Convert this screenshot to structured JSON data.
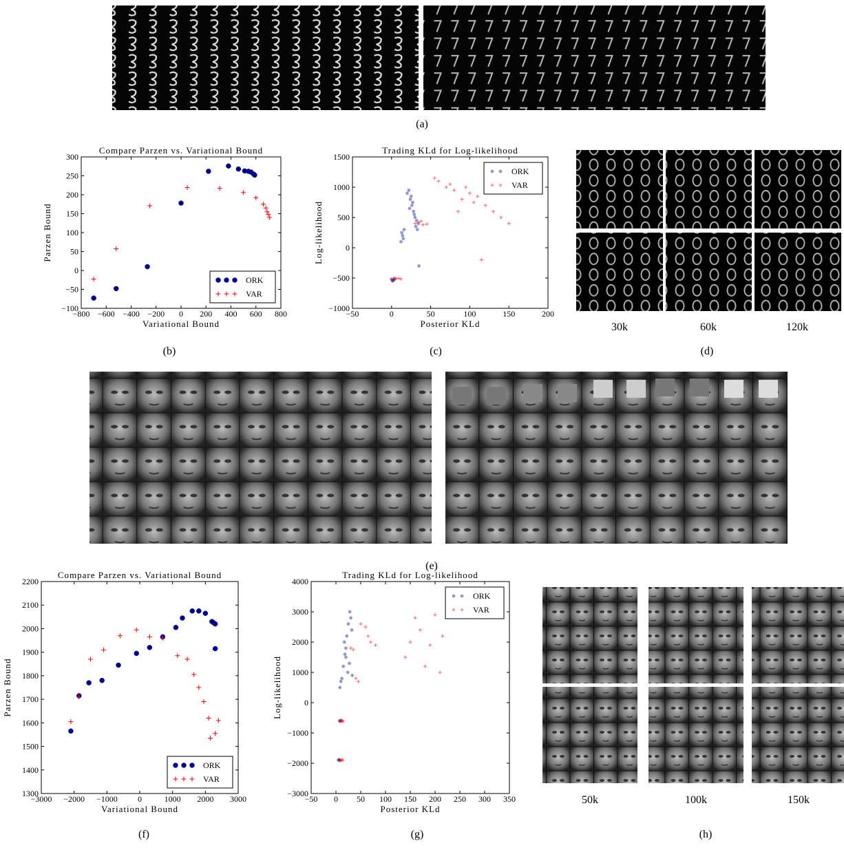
{
  "figure": {
    "panel_labels": [
      "(a)",
      "(b)",
      "(c)",
      "(d)",
      "(e)",
      "(f)",
      "(g)",
      "(h)"
    ],
    "captions_d": [
      "30k",
      "60k",
      "120k"
    ],
    "captions_h": [
      "50k",
      "100k",
      "150k"
    ]
  },
  "chart_data": [
    {
      "type": "scatter",
      "title": "Compare Parzen vs. Variational Bound",
      "xlabel": "Variational Bound",
      "ylabel": "Parzen Bound",
      "xlim": [
        -800,
        800
      ],
      "xticks": [
        {
          "value": -800,
          "label": "−800"
        },
        {
          "value": -600,
          "label": "−600"
        },
        {
          "value": -400,
          "label": "−400"
        },
        {
          "value": -200,
          "label": "−200"
        },
        0,
        200,
        400,
        600,
        800
      ],
      "ylim": [
        -100,
        300
      ],
      "yticks": [
        {
          "value": -100,
          "label": "−100"
        },
        {
          "value": -50,
          "label": "−50"
        },
        0,
        50,
        100,
        150,
        200,
        250,
        300
      ],
      "legend": "lower right",
      "series": [
        {
          "name": "ORK",
          "color": "#00008b",
          "marker": "o",
          "x": [
            -700,
            -520,
            -270,
            0,
            220,
            380,
            460,
            510,
            540,
            560,
            580,
            590
          ],
          "values": [
            -73,
            -48,
            10,
            178,
            262,
            276,
            268,
            263,
            262,
            260,
            255,
            252
          ]
        },
        {
          "name": "VAR",
          "color": "#ff0000",
          "marker": "+",
          "x": [
            -700,
            -520,
            -250,
            50,
            310,
            500,
            600,
            660,
            680,
            690,
            700,
            710
          ],
          "values": [
            -23,
            57,
            171,
            219,
            217,
            206,
            192,
            175,
            165,
            155,
            148,
            140
          ]
        }
      ]
    },
    {
      "type": "scatter",
      "title": "Trading KLd for Log-likelihood",
      "xlabel": "Posterior KLd",
      "ylabel": "Log-likelihood",
      "xlim": [
        -50,
        200
      ],
      "xticks": [
        {
          "value": -50,
          "label": "−50"
        },
        0,
        50,
        100,
        150,
        200
      ],
      "ylim": [
        -1000,
        1500
      ],
      "yticks": [
        {
          "value": -1000,
          "label": "−1000"
        },
        {
          "value": -500,
          "label": "−500"
        },
        0,
        500,
        1000,
        1500
      ],
      "legend": "upper right",
      "series": [
        {
          "name": "ORK",
          "color": "#00008b",
          "marker": "o",
          "alpha": 0.4,
          "x": [
            0,
            2,
            4,
            3,
            1,
            12,
            14,
            16,
            13,
            15,
            20,
            22,
            24,
            26,
            28,
            30,
            32,
            34,
            25,
            27,
            23,
            29,
            31,
            33,
            35
          ],
          "values": [
            -520,
            -540,
            -510,
            -530,
            -550,
            100,
            200,
            300,
            250,
            150,
            900,
            950,
            800,
            700,
            600,
            500,
            450,
            400,
            850,
            750,
            650,
            550,
            350,
            300,
            -300
          ]
        },
        {
          "name": "VAR",
          "color": "#ff0000",
          "marker": "+",
          "alpha": 0.6,
          "x": [
            0,
            3,
            6,
            9,
            12,
            30,
            35,
            40,
            45,
            38,
            55,
            60,
            70,
            80,
            90,
            100,
            110,
            120,
            130,
            140,
            150,
            75,
            95,
            85,
            105,
            115
          ],
          "values": [
            -520,
            -500,
            -510,
            -505,
            -515,
            400,
            420,
            380,
            390,
            440,
            1150,
            1100,
            1000,
            950,
            800,
            900,
            850,
            700,
            600,
            500,
            400,
            1050,
            1000,
            600,
            750,
            -200
          ]
        }
      ]
    },
    {
      "type": "scatter",
      "title": "Compare Parzen vs. Variational Bound",
      "xlabel": "Variational Bound",
      "ylabel": "Parzen Bound",
      "xlim": [
        -3000,
        3000
      ],
      "xticks": [
        {
          "value": -3000,
          "label": "−3000"
        },
        {
          "value": -2000,
          "label": "−2000"
        },
        {
          "value": -1000,
          "label": "−1000"
        },
        0,
        1000,
        2000,
        3000
      ],
      "ylim": [
        1300,
        2200
      ],
      "yticks": [
        1300,
        1400,
        1500,
        1600,
        1700,
        1800,
        1900,
        2000,
        2100,
        2200
      ],
      "legend": "lower right",
      "series": [
        {
          "name": "ORK",
          "color": "#00008b",
          "marker": "o",
          "x": [
            -2100,
            -1850,
            -1550,
            -1150,
            -650,
            -100,
            300,
            700,
            1100,
            1300,
            1600,
            1800,
            2000,
            2200,
            2250,
            2300,
            2300
          ],
          "values": [
            1565,
            1715,
            1770,
            1780,
            1845,
            1895,
            1920,
            1965,
            2005,
            2045,
            2075,
            2075,
            2065,
            2030,
            2025,
            2020,
            1915
          ]
        },
        {
          "name": "VAR",
          "color": "#ff0000",
          "marker": "+",
          "x": [
            -2100,
            -1850,
            -1500,
            -1100,
            -600,
            -100,
            300,
            700,
            1150,
            1450,
            1650,
            1800,
            1950,
            2100,
            2150,
            2300,
            2400
          ],
          "values": [
            1605,
            1710,
            1870,
            1910,
            1970,
            1995,
            1965,
            1960,
            1885,
            1870,
            1805,
            1750,
            1690,
            1620,
            1535,
            1555,
            1610
          ]
        }
      ]
    },
    {
      "type": "scatter",
      "title": "Trading KLd for Log-likelihood",
      "xlabel": "Posterior KLd",
      "ylabel": "Log-likelihood",
      "xlim": [
        -50,
        350
      ],
      "xticks": [
        {
          "value": -50,
          "label": "−50"
        },
        0,
        50,
        100,
        150,
        200,
        250,
        300,
        350
      ],
      "ylim": [
        -3000,
        4000
      ],
      "yticks": [
        {
          "value": -3000,
          "label": "−3000"
        },
        {
          "value": -2000,
          "label": "−2000"
        },
        {
          "value": -1000,
          "label": "−1000"
        },
        0,
        1000,
        2000,
        3000,
        4000
      ],
      "legend": "upper right",
      "series": [
        {
          "name": "ORK",
          "color": "#00008b",
          "marker": "o",
          "alpha": 0.4,
          "x": [
            5,
            6,
            8,
            7,
            9,
            10,
            8,
            10,
            12,
            15,
            18,
            20,
            22,
            25,
            28,
            30,
            32,
            20,
            24,
            27,
            17,
            33
          ],
          "values": [
            -1900,
            -1880,
            -1900,
            -600,
            -620,
            -580,
            500,
            700,
            800,
            1200,
            1600,
            1800,
            2200,
            2600,
            3000,
            2800,
            2400,
            1500,
            1000,
            1300,
            2000,
            900
          ]
        },
        {
          "name": "VAR",
          "color": "#ff0000",
          "marker": "+",
          "alpha": 0.6,
          "x": [
            8,
            10,
            12,
            14,
            9,
            11,
            13,
            15,
            30,
            35,
            40,
            45,
            50,
            60,
            65,
            70,
            80,
            140,
            150,
            160,
            170,
            180,
            190,
            200,
            210,
            215
          ],
          "values": [
            -1900,
            -1920,
            -1880,
            -1900,
            -600,
            -580,
            -620,
            -610,
            1800,
            1750,
            800,
            700,
            2600,
            2500,
            2200,
            2000,
            1900,
            1500,
            2000,
            2800,
            2400,
            1200,
            1900,
            2900,
            1000,
            2200
          ]
        }
      ]
    }
  ]
}
